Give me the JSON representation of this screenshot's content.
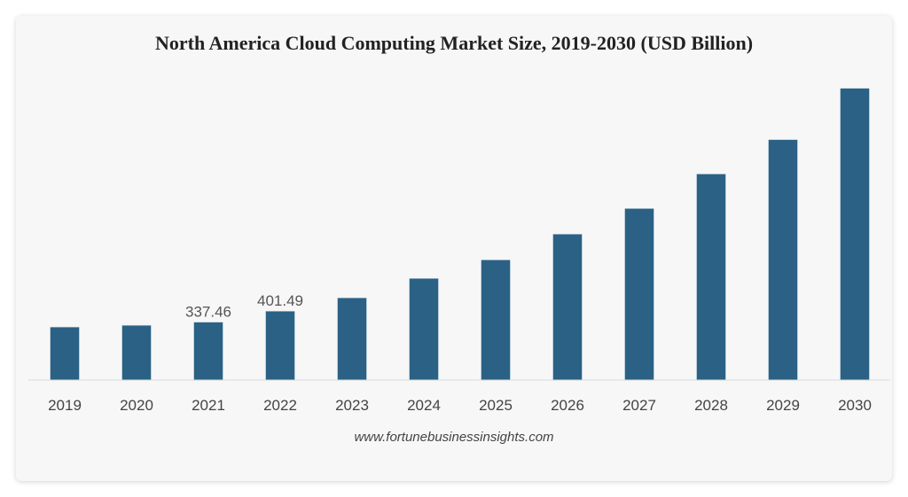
{
  "chart_data": {
    "type": "bar",
    "title": "North America Cloud Computing Market Size, 2019-2030 (USD Billion)",
    "categories": [
      "2019",
      "2020",
      "2021",
      "2022",
      "2023",
      "2024",
      "2025",
      "2026",
      "2027",
      "2028",
      "2029",
      "2030"
    ],
    "values": [
      309,
      319,
      337.46,
      401.49,
      479,
      592,
      700,
      850,
      999,
      1200,
      1400,
      1699
    ],
    "data_labels": {
      "2021": "337.46",
      "2022": "401.49"
    },
    "xlabel": "",
    "ylabel": "",
    "ylim": [
      0,
      1800
    ],
    "grid": false,
    "bar_color": "#2a6184",
    "source": "www.fortunebusinessinsights.com"
  }
}
